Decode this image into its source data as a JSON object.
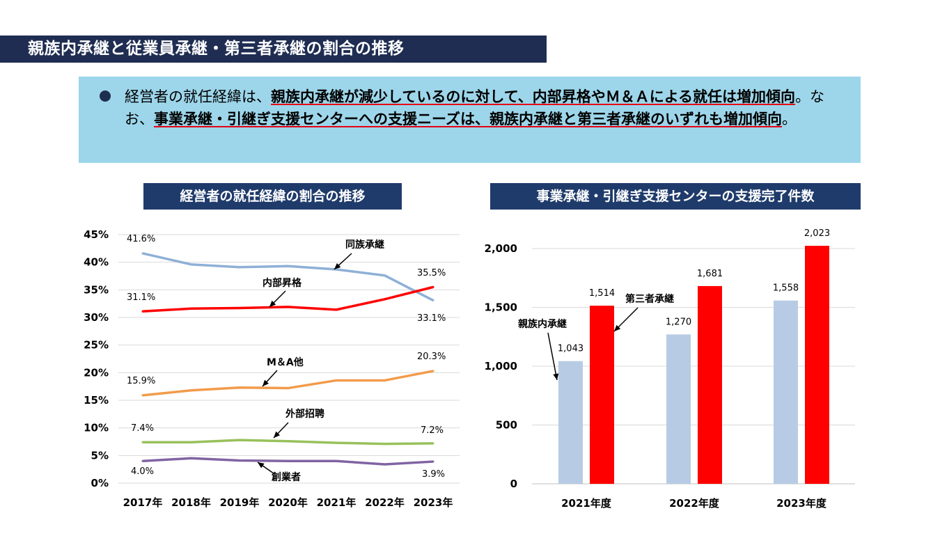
{
  "page": {
    "title": "親族内承継と従業員承継・第三者承継の割合の推移",
    "summary": {
      "p1": "経営者の就任経緯は、",
      "h1": "親族内承継が減少しているのに対して、内部昇格やＭ＆Ａによる就任は増加傾向",
      "p2": "。なお、",
      "h2": "事業承継・引継ぎ支援センターへの支援ニーズは、親族内承継と第三者承継のいずれも増加傾向",
      "p3": "。"
    }
  },
  "chart_data": [
    {
      "type": "line",
      "title": "経営者の就任経緯の割合の推移",
      "categories": [
        "2017年",
        "2018年",
        "2019年",
        "2020年",
        "2021年",
        "2022年",
        "2023年"
      ],
      "ylim": [
        0,
        45
      ],
      "yticks": [
        "0%",
        "5%",
        "10%",
        "15%",
        "20%",
        "25%",
        "30%",
        "35%",
        "40%",
        "45%"
      ],
      "series": [
        {
          "name": "同族承継",
          "color": "#8eb0d6",
          "values": [
            41.6,
            39.6,
            39.1,
            39.3,
            38.7,
            37.6,
            33.1
          ],
          "first_label": "41.6%",
          "last_label": "33.1%"
        },
        {
          "name": "内部昇格",
          "color": "#ff0000",
          "values": [
            31.1,
            31.6,
            31.7,
            31.9,
            31.4,
            33.3,
            35.5
          ],
          "first_label": "31.1%",
          "last_label": "35.5%"
        },
        {
          "name": "M＆A他",
          "color": "#f29b4b",
          "values": [
            15.9,
            16.8,
            17.3,
            17.2,
            18.6,
            18.6,
            20.3
          ],
          "first_label": "15.9%",
          "last_label": "20.3%"
        },
        {
          "name": "外部招聘",
          "color": "#98c15b",
          "values": [
            7.4,
            7.4,
            7.8,
            7.6,
            7.3,
            7.1,
            7.2
          ],
          "first_label": "7.4%",
          "last_label": "7.2%"
        },
        {
          "name": "創業者",
          "color": "#8064a2",
          "values": [
            4.0,
            4.5,
            4.1,
            4.0,
            4.0,
            3.4,
            3.9
          ],
          "first_label": "4.0%",
          "last_label": "3.9%"
        }
      ]
    },
    {
      "type": "bar",
      "title": "事業承継・引継ぎ支援センターの支援完了件数",
      "categories": [
        "2021年度",
        "2022年度",
        "2023年度"
      ],
      "ylim": [
        0,
        2000
      ],
      "yticks": [
        "0",
        "500",
        "1,000",
        "1,500",
        "2,000"
      ],
      "series": [
        {
          "name": "親族内承継",
          "color": "#b7cce4",
          "values": [
            1043,
            1270,
            1558
          ],
          "labels": [
            "1,043",
            "1,270",
            "1,558"
          ]
        },
        {
          "name": "第三者承継",
          "color": "#ff0000",
          "values": [
            1514,
            1681,
            2023
          ],
          "labels": [
            "1,514",
            "1,681",
            "2,023"
          ]
        }
      ]
    }
  ]
}
